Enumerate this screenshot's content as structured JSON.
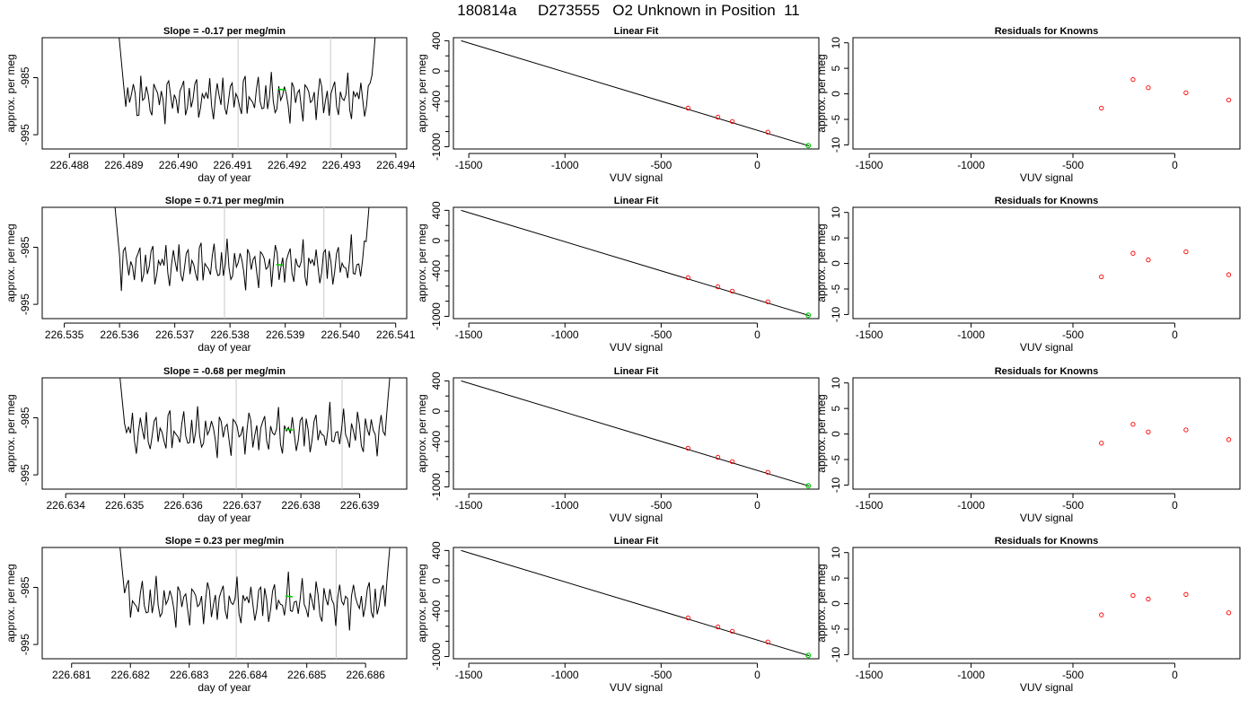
{
  "title": "180814a     D273555   O2 Unknown in Position  11",
  "colors": {
    "trace": "#000000",
    "known_points": "#ff0000",
    "unknown_points": "#00cc00",
    "fit_line": "#000000",
    "interval_lines": "#c8c8c8",
    "axes": "#000000"
  },
  "chart_data": [
    {
      "type": "line",
      "panel": "time-series",
      "row": 1,
      "title": "Slope =  -0.17  per meg/min",
      "xlabel": "day of year",
      "ylabel": "approx. per meg",
      "xlim": [
        226.4875,
        226.4942
      ],
      "ylim": [
        -997.5,
        -978
      ],
      "xticks": [
        "226.488",
        "226.489",
        "226.490",
        "226.491",
        "226.492",
        "226.493",
        "226.494"
      ],
      "xtick_values": [
        226.488,
        226.489,
        226.49,
        226.491,
        226.492,
        226.493,
        226.494
      ],
      "yticks": [
        "-995",
        "-985"
      ],
      "ytick_values": [
        -995,
        -985
      ],
      "series_start": 226.4889,
      "series_end": 226.4937,
      "baseline": -988.5,
      "interval_lines": [
        226.4911,
        226.4928
      ],
      "unknown_point": [
        226.4919,
        -987
      ]
    },
    {
      "type": "scatter",
      "panel": "linear-fit",
      "row": 1,
      "title": "Linear Fit",
      "xlabel": "VUV signal",
      "ylabel": "approx. per meg",
      "xlim": [
        -1580,
        320
      ],
      "ylim": [
        -1030,
        440
      ],
      "xticks": [
        "-1500",
        "-1000",
        "-500",
        "0"
      ],
      "xtick_values": [
        -1500,
        -1000,
        -500,
        0
      ],
      "yticks": [
        "-1000",
        "-400",
        "0",
        "400"
      ],
      "ytick_values": [
        -1000,
        -400,
        0,
        400
      ],
      "yminor": [
        -800,
        -600,
        -200,
        200
      ],
      "fit_line": [
        [
          -1540,
          400
        ],
        [
          270,
          -990
        ]
      ],
      "knowns": [
        [
          -360,
          -490
        ],
        [
          -205,
          -610
        ],
        [
          -130,
          -667
        ],
        [
          55,
          -808
        ]
      ],
      "unknown": [
        [
          265,
          -985
        ]
      ]
    },
    {
      "type": "scatter",
      "panel": "residuals",
      "row": 1,
      "title": "Residuals for Knowns",
      "xlabel": "VUV signal",
      "ylabel": "approx. per meg",
      "xlim": [
        -1580,
        320
      ],
      "ylim": [
        -10.8,
        11
      ],
      "xticks": [
        "-1500",
        "-1000",
        "-500",
        "0"
      ],
      "xtick_values": [
        -1500,
        -1000,
        -500,
        0
      ],
      "yticks": [
        "-10",
        "-5",
        "0",
        "5",
        "10"
      ],
      "ytick_values": [
        -10,
        -5,
        0,
        5,
        10
      ],
      "residuals": [
        [
          -360,
          -2.8
        ],
        [
          -205,
          2.8
        ],
        [
          -130,
          1.2
        ],
        [
          55,
          0.2
        ],
        [
          265,
          -1.2
        ]
      ]
    },
    {
      "type": "line",
      "panel": "time-series",
      "row": 2,
      "title": "Slope =  0.71  per meg/min",
      "xlabel": "day of year",
      "ylabel": "approx. per meg",
      "xlim": [
        226.5346,
        226.5412
      ],
      "ylim": [
        -997.5,
        -978
      ],
      "xticks": [
        "226.535",
        "226.536",
        "226.537",
        "226.538",
        "226.539",
        "226.540",
        "226.541"
      ],
      "xtick_values": [
        226.535,
        226.536,
        226.537,
        226.538,
        226.539,
        226.54,
        226.541
      ],
      "yticks": [
        "-995",
        "-985"
      ],
      "ytick_values": [
        -995,
        -985
      ],
      "series_start": 226.5359,
      "series_end": 226.5406,
      "baseline": -988,
      "interval_lines": [
        226.5379,
        226.5397
      ],
      "unknown_point": [
        226.5389,
        -988
      ]
    },
    {
      "type": "scatter",
      "panel": "linear-fit",
      "row": 2,
      "title": "Linear Fit",
      "xlabel": "VUV signal",
      "ylabel": "approx. per meg",
      "xlim": [
        -1580,
        320
      ],
      "ylim": [
        -1030,
        440
      ],
      "xticks": [
        "-1500",
        "-1000",
        "-500",
        "0"
      ],
      "xtick_values": [
        -1500,
        -1000,
        -500,
        0
      ],
      "yticks": [
        "-1000",
        "-400",
        "0",
        "400"
      ],
      "ytick_values": [
        -1000,
        -400,
        0,
        400
      ],
      "yminor": [
        -800,
        -600,
        -200,
        200
      ],
      "fit_line": [
        [
          -1540,
          400
        ],
        [
          270,
          -990
        ]
      ],
      "knowns": [
        [
          -360,
          -490
        ],
        [
          -205,
          -610
        ],
        [
          -130,
          -667
        ],
        [
          55,
          -808
        ]
      ],
      "unknown": [
        [
          265,
          -985
        ]
      ]
    },
    {
      "type": "scatter",
      "panel": "residuals",
      "row": 2,
      "title": "Residuals for Knowns",
      "xlabel": "VUV signal",
      "ylabel": "approx. per meg",
      "xlim": [
        -1580,
        320
      ],
      "ylim": [
        -10.8,
        11
      ],
      "xticks": [
        "-1500",
        "-1000",
        "-500",
        "0"
      ],
      "xtick_values": [
        -1500,
        -1000,
        -500,
        0
      ],
      "yticks": [
        "-10",
        "-5",
        "0",
        "5",
        "10"
      ],
      "ytick_values": [
        -10,
        -5,
        0,
        5,
        10
      ],
      "residuals": [
        [
          -360,
          -2.6
        ],
        [
          -205,
          2.0
        ],
        [
          -130,
          0.7
        ],
        [
          55,
          2.3
        ],
        [
          265,
          -2.2
        ]
      ]
    },
    {
      "type": "line",
      "panel": "time-series",
      "row": 3,
      "title": "Slope =  -0.68  per meg/min",
      "xlabel": "day of year",
      "ylabel": "approx. per meg",
      "xlim": [
        226.6336,
        226.6398
      ],
      "ylim": [
        -997.5,
        -978
      ],
      "xticks": [
        "226.634",
        "226.635",
        "226.636",
        "226.637",
        "226.638",
        "226.639"
      ],
      "xtick_values": [
        226.634,
        226.635,
        226.636,
        226.637,
        226.638,
        226.639
      ],
      "yticks": [
        "-995",
        "-985"
      ],
      "ytick_values": [
        -995,
        -985
      ],
      "series_start": 226.6349,
      "series_end": 226.6396,
      "baseline": -987.5,
      "interval_lines": [
        226.6369,
        226.6387
      ],
      "unknown_point": [
        226.6378,
        -987
      ]
    },
    {
      "type": "scatter",
      "panel": "linear-fit",
      "row": 3,
      "title": "Linear Fit",
      "xlabel": "VUV signal",
      "ylabel": "approx. per meg",
      "xlim": [
        -1580,
        320
      ],
      "ylim": [
        -1030,
        440
      ],
      "xticks": [
        "-1500",
        "-1000",
        "-500",
        "0"
      ],
      "xtick_values": [
        -1500,
        -1000,
        -500,
        0
      ],
      "yticks": [
        "-1000",
        "-400",
        "0",
        "400"
      ],
      "ytick_values": [
        -1000,
        -400,
        0,
        400
      ],
      "yminor": [
        -800,
        -600,
        -200,
        200
      ],
      "fit_line": [
        [
          -1540,
          400
        ],
        [
          270,
          -990
        ]
      ],
      "knowns": [
        [
          -360,
          -490
        ],
        [
          -205,
          -610
        ],
        [
          -130,
          -667
        ],
        [
          55,
          -808
        ]
      ],
      "unknown": [
        [
          265,
          -985
        ]
      ]
    },
    {
      "type": "scatter",
      "panel": "residuals",
      "row": 3,
      "title": "Residuals for Knowns",
      "xlabel": "VUV signal",
      "ylabel": "approx. per meg",
      "xlim": [
        -1580,
        320
      ],
      "ylim": [
        -10.8,
        11
      ],
      "xticks": [
        "-1500",
        "-1000",
        "-500",
        "0"
      ],
      "xtick_values": [
        -1500,
        -1000,
        -500,
        0
      ],
      "yticks": [
        "-10",
        "-5",
        "0",
        "5",
        "10"
      ],
      "ytick_values": [
        -10,
        -5,
        0,
        5,
        10
      ],
      "residuals": [
        [
          -360,
          -1.8
        ],
        [
          -205,
          1.9
        ],
        [
          -130,
          0.4
        ],
        [
          55,
          0.8
        ],
        [
          265,
          -1.1
        ]
      ]
    },
    {
      "type": "line",
      "panel": "time-series",
      "row": 4,
      "title": "Slope =  0.23  per meg/min",
      "xlabel": "day of year",
      "ylabel": "approx. per meg",
      "xlim": [
        226.6805,
        226.6867
      ],
      "ylim": [
        -997.5,
        -978
      ],
      "xticks": [
        "226.681",
        "226.682",
        "226.683",
        "226.684",
        "226.685",
        "226.686"
      ],
      "xtick_values": [
        226.681,
        226.682,
        226.683,
        226.684,
        226.685,
        226.686
      ],
      "yticks": [
        "-995",
        "-985"
      ],
      "ytick_values": [
        -995,
        -985
      ],
      "series_start": 226.6818,
      "series_end": 226.6865,
      "baseline": -987.5,
      "interval_lines": [
        226.6838,
        226.6855
      ],
      "unknown_point": [
        226.6847,
        -986.5
      ]
    },
    {
      "type": "scatter",
      "panel": "linear-fit",
      "row": 4,
      "title": "Linear Fit",
      "xlabel": "VUV signal",
      "ylabel": "approx. per meg",
      "xlim": [
        -1580,
        320
      ],
      "ylim": [
        -1030,
        440
      ],
      "xticks": [
        "-1500",
        "-1000",
        "-500",
        "0"
      ],
      "xtick_values": [
        -1500,
        -1000,
        -500,
        0
      ],
      "yticks": [
        "-1000",
        "-400",
        "0",
        "400"
      ],
      "ytick_values": [
        -1000,
        -400,
        0,
        400
      ],
      "yminor": [
        -800,
        -600,
        -200,
        200
      ],
      "fit_line": [
        [
          -1540,
          400
        ],
        [
          270,
          -990
        ]
      ],
      "knowns": [
        [
          -360,
          -490
        ],
        [
          -205,
          -610
        ],
        [
          -130,
          -667
        ],
        [
          55,
          -808
        ]
      ],
      "unknown": [
        [
          265,
          -985
        ]
      ]
    },
    {
      "type": "scatter",
      "panel": "residuals",
      "row": 4,
      "title": "Residuals for Knowns",
      "xlabel": "VUV signal",
      "ylabel": "approx. per meg",
      "xlim": [
        -1580,
        320
      ],
      "ylim": [
        -10.8,
        11
      ],
      "xticks": [
        "-1500",
        "-1000",
        "-500",
        "0"
      ],
      "xtick_values": [
        -1500,
        -1000,
        -500,
        0
      ],
      "yticks": [
        "-10",
        "-5",
        "0",
        "5",
        "10"
      ],
      "ytick_values": [
        -10,
        -5,
        0,
        5,
        10
      ],
      "residuals": [
        [
          -360,
          -2.2
        ],
        [
          -205,
          1.6
        ],
        [
          -130,
          0.9
        ],
        [
          55,
          1.8
        ],
        [
          265,
          -1.8
        ]
      ]
    }
  ]
}
